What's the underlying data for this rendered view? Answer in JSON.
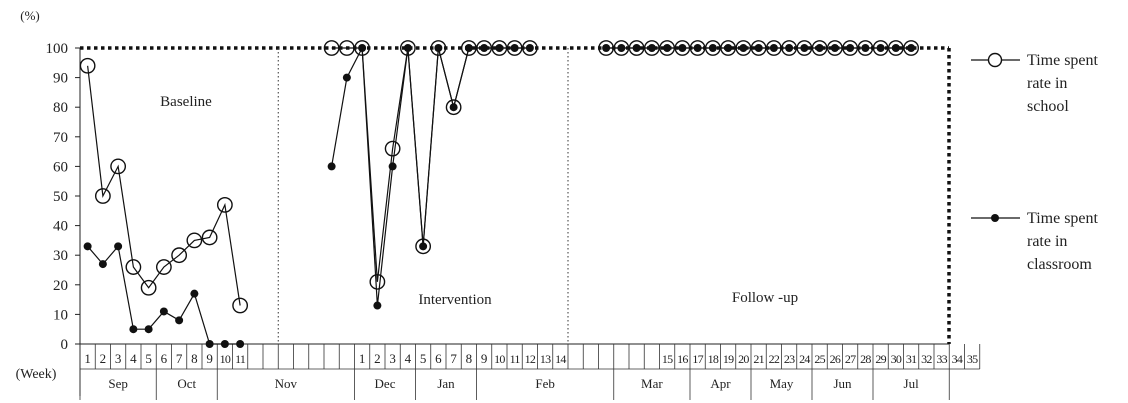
{
  "chart_data": {
    "type": "line",
    "y_unit_label": "(%)",
    "x_unit_label": "(Week)",
    "yticks": [
      0,
      10,
      20,
      30,
      40,
      50,
      60,
      70,
      80,
      90,
      100
    ],
    "ylim": [
      0,
      100
    ],
    "slots": [
      "1",
      "2",
      "3",
      "4",
      "5",
      "6",
      "7",
      "8",
      "9",
      "10",
      "11",
      "",
      "",
      "",
      "",
      "",
      "",
      "",
      "1",
      "2",
      "3",
      "4",
      "5",
      "6",
      "7",
      "8",
      "9",
      "10",
      "11",
      "12",
      "13",
      "14",
      "",
      "",
      "",
      "",
      "",
      "",
      "15",
      "16",
      "17",
      "18",
      "19",
      "20",
      "21",
      "22",
      "23",
      "24",
      "25",
      "26",
      "27",
      "28",
      "29",
      "30",
      "31",
      "32",
      "33",
      "34",
      "35"
    ],
    "months": [
      {
        "label": "Sep",
        "start": 0,
        "end": 5
      },
      {
        "label": "Oct",
        "start": 5,
        "end": 9
      },
      {
        "label": "Nov",
        "start": 9,
        "end": 18
      },
      {
        "label": "Dec",
        "start": 18,
        "end": 22
      },
      {
        "label": "Jan",
        "start": 22,
        "end": 26
      },
      {
        "label": "Feb",
        "start": 26,
        "end": 35
      },
      {
        "label": "Mar",
        "start": 35,
        "end": 40
      },
      {
        "label": "Apr",
        "start": 40,
        "end": 44
      },
      {
        "label": "May",
        "start": 44,
        "end": 48
      },
      {
        "label": "Jun",
        "start": 48,
        "end": 52
      },
      {
        "label": "Jul",
        "start": 52,
        "end": 57
      }
    ],
    "phases": [
      {
        "label": "Baseline",
        "start": 0,
        "end": 13
      },
      {
        "label": "Intervention",
        "start": 13,
        "end": 32
      },
      {
        "label": "Follow -up",
        "start": 32,
        "end": 57
      }
    ],
    "series": [
      {
        "name": "Time spent rate in school",
        "name_lines": [
          "Time spent",
          "rate in",
          "school"
        ],
        "marker": "open-circle",
        "segments": [
          [
            [
              0,
              94
            ],
            [
              1,
              50
            ],
            [
              2,
              60
            ],
            [
              3,
              26
            ],
            [
              4,
              19
            ],
            [
              5,
              26
            ],
            [
              6,
              30
            ],
            [
              7,
              35
            ],
            [
              8,
              36
            ],
            [
              9,
              47
            ],
            [
              10,
              13
            ]
          ],
          [
            [
              16,
              100
            ],
            [
              17,
              100
            ],
            [
              18,
              100
            ],
            [
              19,
              21
            ],
            [
              20,
              66
            ],
            [
              21,
              100
            ],
            [
              22,
              33
            ],
            [
              23,
              100
            ],
            [
              24,
              80
            ],
            [
              25,
              100
            ],
            [
              26,
              100
            ],
            [
              27,
              100
            ],
            [
              28,
              100
            ],
            [
              29,
              100
            ]
          ],
          [
            [
              34,
              100
            ],
            [
              35,
              100
            ],
            [
              36,
              100
            ],
            [
              37,
              100
            ],
            [
              38,
              100
            ],
            [
              39,
              100
            ],
            [
              40,
              100
            ],
            [
              41,
              100
            ],
            [
              42,
              100
            ],
            [
              43,
              100
            ],
            [
              44,
              100
            ],
            [
              45,
              100
            ],
            [
              46,
              100
            ],
            [
              47,
              100
            ],
            [
              48,
              100
            ],
            [
              49,
              100
            ],
            [
              50,
              100
            ],
            [
              51,
              100
            ],
            [
              52,
              100
            ],
            [
              53,
              100
            ],
            [
              54,
              100
            ]
          ]
        ]
      },
      {
        "name": "Time spent rate in classroom",
        "name_lines": [
          "Time spent",
          "rate in",
          "classroom"
        ],
        "marker": "filled-circle",
        "segments": [
          [
            [
              0,
              33
            ],
            [
              1,
              27
            ],
            [
              2,
              33
            ],
            [
              3,
              5
            ],
            [
              4,
              5
            ],
            [
              5,
              11
            ],
            [
              6,
              8
            ],
            [
              7,
              17
            ],
            [
              8,
              0
            ],
            [
              9,
              0
            ],
            [
              10,
              0
            ]
          ],
          [
            [
              16,
              60
            ],
            [
              17,
              90
            ],
            [
              18,
              100
            ],
            [
              19,
              13
            ],
            [
              20,
              60
            ],
            [
              21,
              100
            ],
            [
              22,
              33
            ],
            [
              23,
              100
            ],
            [
              24,
              80
            ],
            [
              25,
              100
            ],
            [
              26,
              100
            ],
            [
              27,
              100
            ],
            [
              28,
              100
            ],
            [
              29,
              100
            ]
          ],
          [
            [
              34,
              100
            ],
            [
              35,
              100
            ],
            [
              36,
              100
            ],
            [
              37,
              100
            ],
            [
              38,
              100
            ],
            [
              39,
              100
            ],
            [
              40,
              100
            ],
            [
              41,
              100
            ],
            [
              42,
              100
            ],
            [
              43,
              100
            ],
            [
              44,
              100
            ],
            [
              45,
              100
            ],
            [
              46,
              100
            ],
            [
              47,
              100
            ],
            [
              48,
              100
            ],
            [
              49,
              100
            ],
            [
              50,
              100
            ],
            [
              51,
              100
            ],
            [
              52,
              100
            ],
            [
              53,
              100
            ],
            [
              54,
              100
            ]
          ]
        ]
      }
    ]
  }
}
